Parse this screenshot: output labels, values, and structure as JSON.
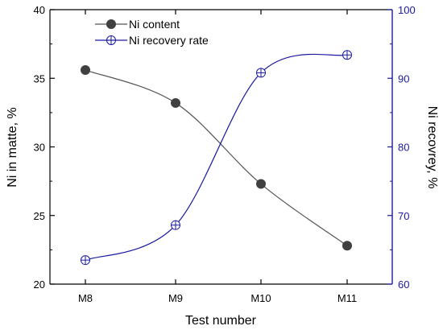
{
  "chart_data": {
    "type": "line",
    "categories": [
      "M8",
      "M9",
      "M10",
      "M11"
    ],
    "xlabel": "Test number",
    "ylabel_left": "Ni in matte, %",
    "ylabel_right": "Ni recovrey, %",
    "ylim_left": [
      20,
      40
    ],
    "ylim_right": [
      60,
      100
    ],
    "yticks_left": [
      20,
      25,
      30,
      35,
      40
    ],
    "yticks_right": [
      60,
      70,
      80,
      90,
      100
    ],
    "grid": false,
    "legend_position": "top-left",
    "series": [
      {
        "name": "Ni content",
        "axis": "left",
        "values": [
          35.6,
          33.2,
          27.3,
          22.8
        ],
        "color": "#404040",
        "line_color": "#555555",
        "marker": "filled-circle"
      },
      {
        "name": "Ni recovery rate",
        "axis": "right",
        "values": [
          63.5,
          68.6,
          90.8,
          93.4
        ],
        "color": "#1a1aa0",
        "line_color": "#1a1aa0",
        "marker": "circle-plus"
      }
    ],
    "axis_colors": {
      "left": "#000000",
      "right": "#1a1aa0"
    }
  }
}
